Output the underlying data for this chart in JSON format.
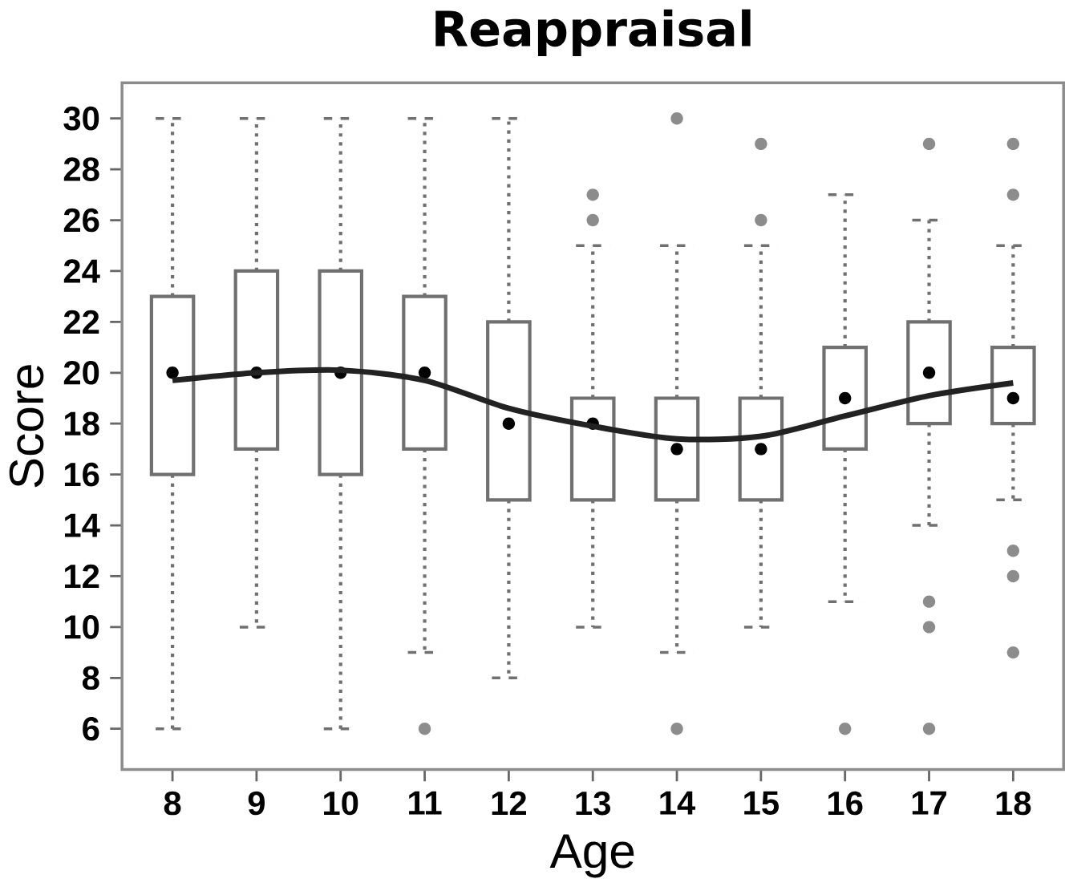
{
  "chart_data": {
    "type": "box",
    "title": "Reappraisal",
    "xlabel": "Age",
    "ylabel": "Score",
    "x": [
      8,
      9,
      10,
      11,
      12,
      13,
      14,
      15,
      16,
      17,
      18
    ],
    "xlim": [
      7.4,
      18.6
    ],
    "xticks": [
      8,
      9,
      10,
      11,
      12,
      13,
      14,
      15,
      16,
      17,
      18
    ],
    "ylim": [
      4.4,
      31.4
    ],
    "yticks": [
      6,
      8,
      10,
      12,
      14,
      16,
      18,
      20,
      22,
      24,
      26,
      28,
      30
    ],
    "grid": false,
    "color": "#707070",
    "boxes": [
      {
        "low": 6,
        "q1": 16,
        "median": 20,
        "q3": 23,
        "high": 30
      },
      {
        "low": 10,
        "q1": 17,
        "median": 20,
        "q3": 24,
        "high": 30
      },
      {
        "low": 6,
        "q1": 16,
        "median": 20,
        "q3": 24,
        "high": 30
      },
      {
        "low": 9,
        "q1": 17,
        "median": 20,
        "q3": 23,
        "high": 30,
        "outliers": [
          6
        ]
      },
      {
        "low": 8,
        "q1": 15,
        "median": 18,
        "q3": 22,
        "high": 30
      },
      {
        "low": 10,
        "q1": 15,
        "median": 18,
        "q3": 19,
        "high": 25,
        "outliers": [
          26,
          27
        ]
      },
      {
        "low": 9,
        "q1": 15,
        "median": 17,
        "q3": 19,
        "high": 25,
        "outliers": [
          6,
          30
        ]
      },
      {
        "low": 10,
        "q1": 15,
        "median": 17,
        "q3": 19,
        "high": 25,
        "outliers": [
          26,
          29
        ]
      },
      {
        "low": 11,
        "q1": 17,
        "median": 19,
        "q3": 21,
        "high": 27,
        "outliers": [
          6
        ]
      },
      {
        "low": 14,
        "q1": 18,
        "median": 20,
        "q3": 22,
        "high": 26,
        "outliers": [
          6,
          10,
          11,
          29
        ]
      },
      {
        "low": 15,
        "q1": 18,
        "median": 19,
        "q3": 21,
        "high": 25,
        "outliers": [
          9,
          12,
          13,
          27,
          29
        ]
      }
    ],
    "series": [
      {
        "type": "line",
        "color": "#222222",
        "marker": "none",
        "line_style": "solid",
        "x": [
          8,
          9,
          10,
          11,
          12,
          13,
          14,
          15,
          16,
          17,
          18
        ],
        "values": [
          19.7,
          20.0,
          20.1,
          19.7,
          18.6,
          17.9,
          17.4,
          17.5,
          18.3,
          19.1,
          19.6
        ]
      }
    ]
  }
}
